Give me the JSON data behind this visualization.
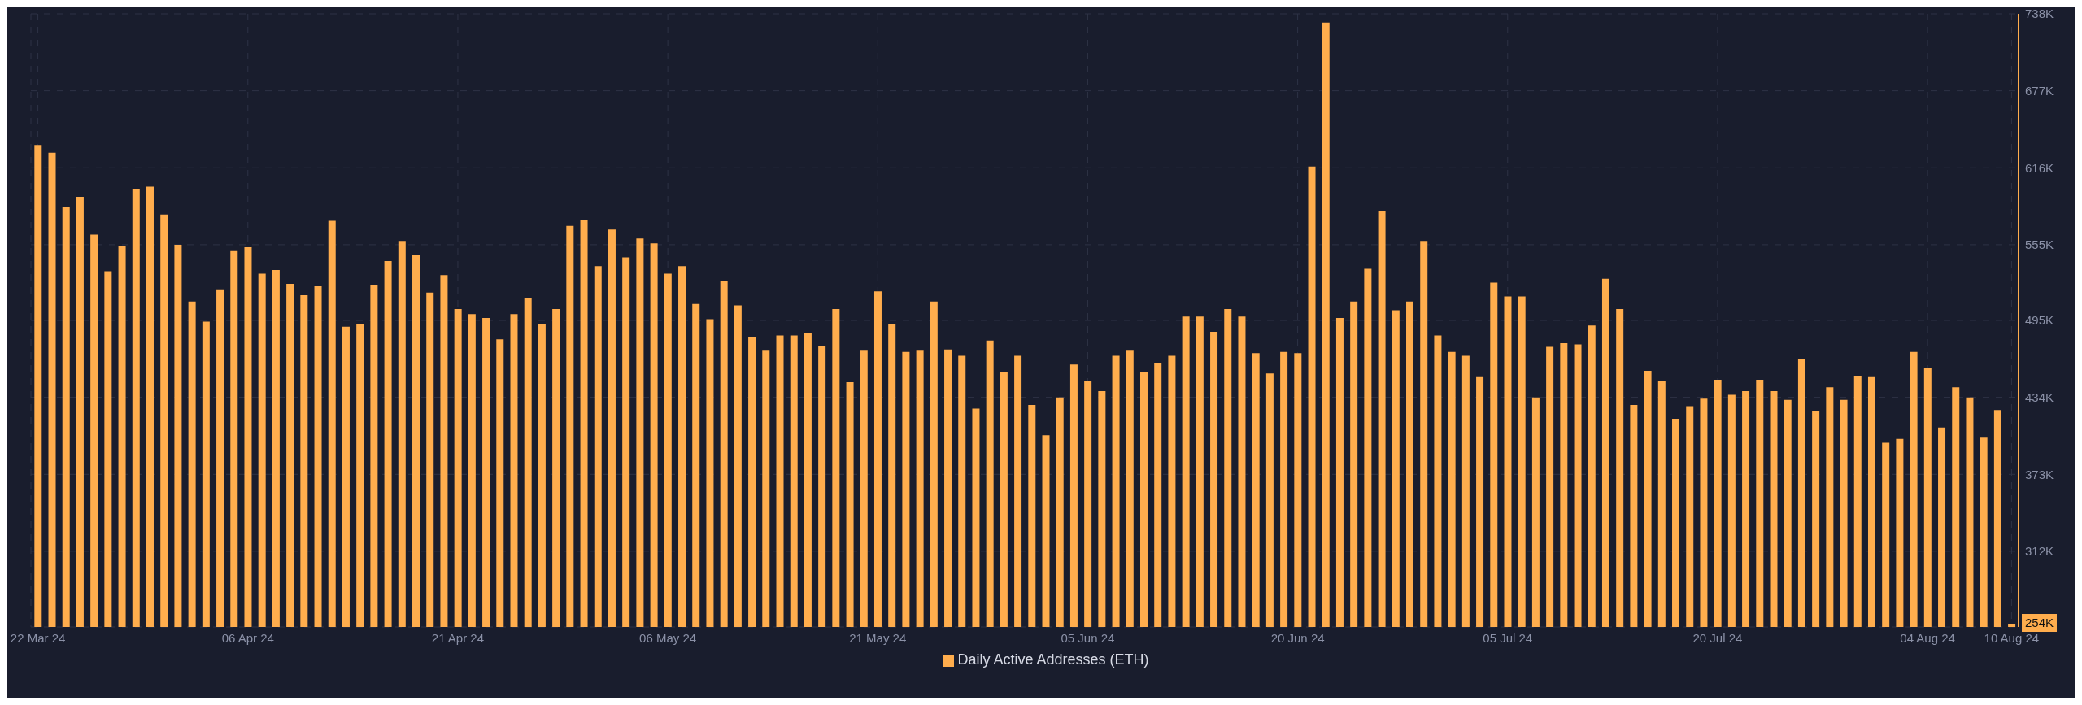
{
  "chart_data": {
    "type": "bar",
    "categories": [
      "22 Mar 24",
      null,
      null,
      null,
      null,
      null,
      null,
      null,
      null,
      null,
      null,
      null,
      null,
      null,
      null,
      "06 Apr 24",
      null,
      null,
      null,
      null,
      null,
      null,
      null,
      null,
      null,
      null,
      null,
      null,
      null,
      null,
      "21 Apr 24",
      null,
      null,
      null,
      null,
      null,
      null,
      null,
      null,
      null,
      null,
      null,
      null,
      null,
      null,
      "06 May 24",
      null,
      null,
      null,
      null,
      null,
      null,
      null,
      null,
      null,
      null,
      null,
      null,
      null,
      null,
      "21 May 24",
      null,
      null,
      null,
      null,
      null,
      null,
      null,
      null,
      null,
      null,
      null,
      null,
      null,
      null,
      "05 Jun 24",
      null,
      null,
      null,
      null,
      null,
      null,
      null,
      null,
      null,
      null,
      null,
      null,
      null,
      null,
      "20 Jun 24",
      null,
      null,
      null,
      null,
      null,
      null,
      null,
      null,
      null,
      null,
      null,
      null,
      null,
      null,
      "05 Jul 24",
      null,
      null,
      null,
      null,
      null,
      null,
      null,
      null,
      null,
      null,
      null,
      null,
      null,
      null,
      "20 Jul 24",
      null,
      null,
      null,
      null,
      null,
      null,
      null,
      null,
      null,
      null,
      null,
      null,
      null,
      null,
      "04 Aug 24",
      null,
      null,
      null,
      null,
      null,
      "10 Aug 24"
    ],
    "series": [
      {
        "name": "Daily Active Addresses (ETH)",
        "color": "#ffad4d",
        "values": [
          634000,
          628000,
          585000,
          593000,
          563000,
          534000,
          554000,
          599000,
          601000,
          579000,
          555000,
          510000,
          494000,
          519000,
          550000,
          553000,
          532000,
          535000,
          524000,
          515000,
          522000,
          574000,
          490000,
          492000,
          523000,
          542000,
          558000,
          547000,
          517000,
          531000,
          504000,
          500000,
          497000,
          480000,
          500000,
          513000,
          492000,
          504000,
          570000,
          575000,
          538000,
          567000,
          545000,
          560000,
          556000,
          532000,
          538000,
          508000,
          496000,
          526000,
          507000,
          482000,
          471000,
          483000,
          483000,
          485000,
          475000,
          504000,
          446000,
          471000,
          518000,
          492000,
          470000,
          471000,
          510000,
          472000,
          467000,
          425000,
          479000,
          454000,
          467000,
          428000,
          404000,
          434000,
          460000,
          447000,
          439000,
          467000,
          471000,
          454000,
          461000,
          467000,
          498000,
          498000,
          486000,
          504000,
          498000,
          469000,
          453000,
          470000,
          469000,
          617000,
          731000,
          497000,
          510000,
          536000,
          582000,
          503000,
          510000,
          558000,
          483000,
          470000,
          467000,
          450000,
          525000,
          514000,
          514000,
          434000,
          474000,
          477000,
          476000,
          491000,
          528000,
          504000,
          428000,
          455000,
          447000,
          417000,
          427000,
          433000,
          448000,
          436000,
          439000,
          448000,
          439000,
          432000,
          464000,
          423000,
          442000,
          432000,
          451000,
          450000,
          398000,
          401000,
          470000,
          457000,
          410000,
          442000,
          434000,
          402000,
          424000,
          254000
        ]
      }
    ],
    "ylim": [
      252000,
      738000
    ],
    "yticks": [
      {
        "value": 312000,
        "label": "312K"
      },
      {
        "value": 373000,
        "label": "373K"
      },
      {
        "value": 434000,
        "label": "434K"
      },
      {
        "value": 495000,
        "label": "495K"
      },
      {
        "value": 555000,
        "label": "555K"
      },
      {
        "value": 616000,
        "label": "616K"
      },
      {
        "value": 677000,
        "label": "677K"
      },
      {
        "value": 738000,
        "label": "738K"
      }
    ],
    "annotations": [
      "254K"
    ],
    "grid": true,
    "legend": "bottom"
  }
}
